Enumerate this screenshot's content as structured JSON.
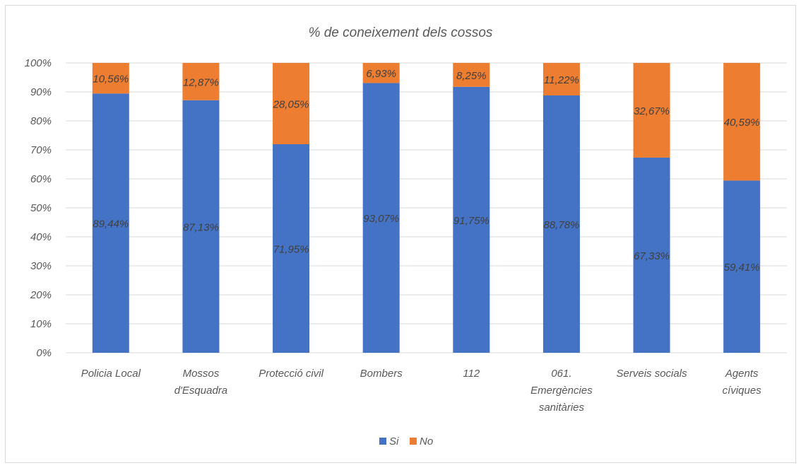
{
  "chart_data": {
    "type": "bar",
    "stacked": true,
    "title": "% de coneixement dels cossos",
    "categories": [
      [
        "Policia Local"
      ],
      [
        "Mossos",
        "d'Esquadra"
      ],
      [
        "Protecció civil"
      ],
      [
        "Bombers"
      ],
      [
        "112"
      ],
      [
        "061.",
        "Emergències",
        "sanitàries"
      ],
      [
        "Serveis socials"
      ],
      [
        "Agents",
        "cíviques"
      ]
    ],
    "series": [
      {
        "name": "Si",
        "color": "#4472c4",
        "values": [
          89.44,
          87.13,
          71.95,
          93.07,
          91.75,
          88.78,
          67.33,
          59.41
        ],
        "labels": [
          "89,44%",
          "87,13%",
          "71,95%",
          "93,07%",
          "91,75%",
          "88,78%",
          "67,33%",
          "59,41%"
        ]
      },
      {
        "name": "No",
        "color": "#ed7d31",
        "values": [
          10.56,
          12.87,
          28.05,
          6.93,
          8.25,
          11.22,
          32.67,
          40.59
        ],
        "labels": [
          "10,56%",
          "12,87%",
          "28,05%",
          "6,93%",
          "8,25%",
          "11,22%",
          "32,67%",
          "40,59%"
        ]
      }
    ],
    "ylim": [
      0,
      100
    ],
    "yticks": [
      "0%",
      "10%",
      "20%",
      "30%",
      "40%",
      "50%",
      "60%",
      "70%",
      "80%",
      "90%",
      "100%"
    ],
    "grid": true,
    "legend": "bottom"
  }
}
